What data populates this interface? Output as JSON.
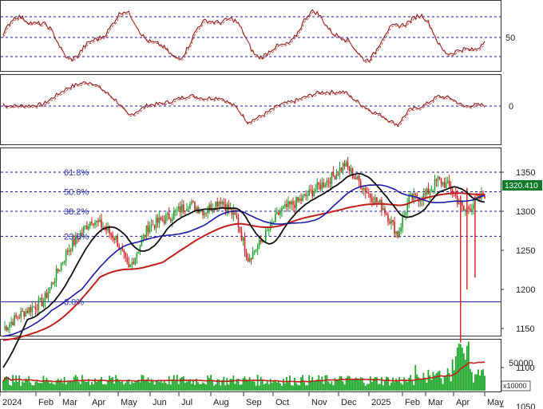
{
  "chart_data": [
    {
      "type": "line",
      "panel": "oscillator-top",
      "series": [],
      "y_ticks": [
        "50"
      ],
      "ylim": [
        0,
        100
      ],
      "guide_levels": [
        80,
        50,
        20
      ],
      "colors": {
        "line": "#8b1a1a"
      }
    },
    {
      "type": "line",
      "panel": "oscillator-mid",
      "series": [],
      "y_ticks": [
        "0"
      ],
      "guide_levels": [
        0
      ],
      "colors": {
        "line": "#8b1a1a"
      }
    },
    {
      "type": "candlestick",
      "panel": "price",
      "y_ticks": [
        "1350",
        "1300",
        "1250",
        "1200",
        "1150",
        "1100",
        "1050"
      ],
      "ylim": [
        1000,
        1400
      ],
      "last_price_label": "1320.410",
      "last_price": 1320.41,
      "fibonacci": [
        {
          "label": "61.8%",
          "value": 1350
        },
        {
          "label": "50.0%",
          "value": 1325
        },
        {
          "label": "38.2%",
          "value": 1300
        },
        {
          "label": "23.6%",
          "value": 1268
        },
        {
          "label": "0.0%",
          "value": 1184
        }
      ],
      "moving_averages": [
        {
          "color": "#111111"
        },
        {
          "color": "#1a1aa8"
        },
        {
          "color": "#c0201a"
        }
      ],
      "colors": {
        "up": "#1e9e2a",
        "down": "#d62020",
        "fib_line": "#1a1aa8"
      }
    },
    {
      "type": "bar",
      "panel": "volume",
      "y_ticks": [
        "50000"
      ],
      "unit_label": "x10000",
      "ylim": [
        0,
        100000
      ],
      "colors": {
        "bar": "#1fa82c",
        "ma": "#c0201a"
      }
    }
  ],
  "x_axis": {
    "labels": [
      "2024",
      "Feb",
      "Mar",
      "Apr",
      "May",
      "Jun",
      "Jul",
      "Aug",
      "Sep",
      "Oct",
      "Nov",
      "Dec",
      "2025",
      "Feb",
      "Mar",
      "Apr",
      "May"
    ]
  }
}
